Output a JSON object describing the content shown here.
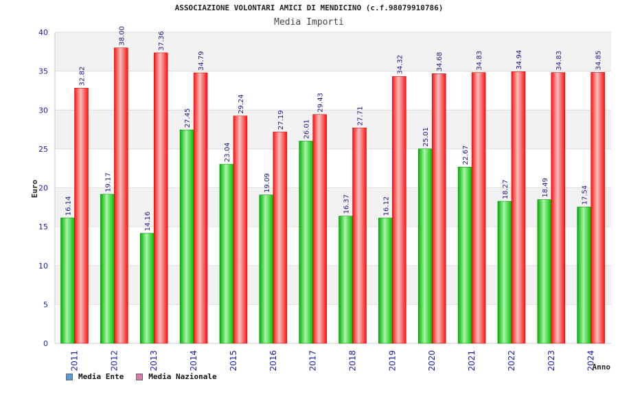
{
  "chart_data": {
    "type": "bar",
    "title": "ASSOCIAZIONE VOLONTARI AMICI DI MENDICINO (c.f.98079910786)",
    "subtitle": "Media Importi",
    "xlabel": "Anno",
    "ylabel": "Euro",
    "ylim": [
      0,
      40
    ],
    "yticks": [
      0,
      5,
      10,
      15,
      20,
      25,
      30,
      35,
      40
    ],
    "grid": true,
    "legend": "bottom-left",
    "categories": [
      "2011",
      "2012",
      "2013",
      "2014",
      "2015",
      "2016",
      "2017",
      "2018",
      "2019",
      "2020",
      "2021",
      "2022",
      "2023",
      "2024"
    ],
    "series": [
      {
        "name": "Media Ente",
        "color": "#00c000",
        "legend_color": "#5b9bd5",
        "values": [
          16.14,
          19.17,
          14.16,
          27.45,
          23.04,
          19.09,
          26.01,
          16.37,
          16.12,
          25.01,
          22.67,
          18.27,
          18.49,
          17.54
        ],
        "labels": [
          "16.14",
          "19.17",
          "14.16",
          "27.45",
          "23.04",
          "19.09",
          "26.01",
          "16.37",
          "16.12",
          "25.01",
          "22.67",
          "18.27",
          "18.49",
          "17.54"
        ]
      },
      {
        "name": "Media Nazionale",
        "color": "#ee1111",
        "legend_color": "#d97ba8",
        "values": [
          32.82,
          38.0,
          37.36,
          34.79,
          29.24,
          27.19,
          29.43,
          27.71,
          34.32,
          34.68,
          34.83,
          34.94,
          34.83,
          34.85
        ],
        "labels": [
          "32.82",
          "38.00",
          "37.36",
          "34.79",
          "29.24",
          "27.19",
          "29.43",
          "27.71",
          "34.32",
          "34.68",
          "34.83",
          "34.94",
          "34.83",
          "34.85"
        ]
      }
    ]
  }
}
